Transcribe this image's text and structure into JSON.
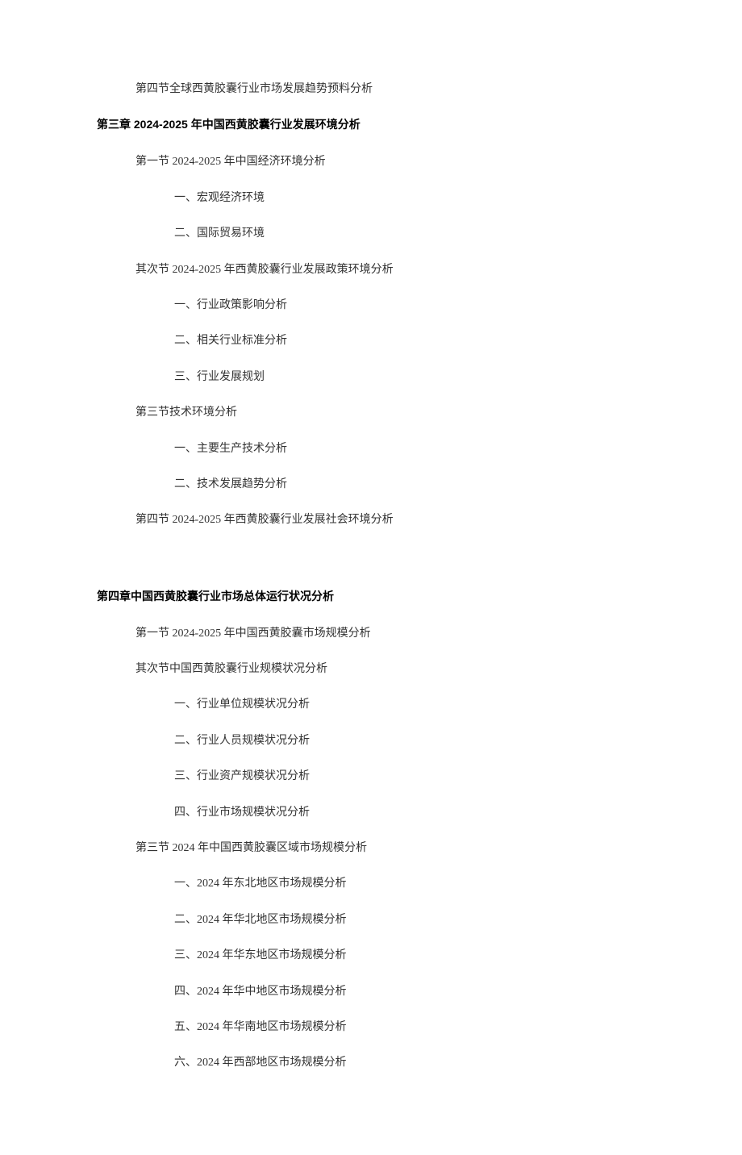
{
  "topLine": "第四节全球西黄胶囊行业市场发展趋势预料分析",
  "chapter3": {
    "title": "第三章 2024-2025 年中国西黄胶囊行业发展环境分析",
    "sections": [
      {
        "title": "第一节 2024-2025 年中国经济环境分析",
        "items": [
          "一、宏观经济环境",
          "二、国际贸易环境"
        ]
      },
      {
        "title": "其次节 2024-2025 年西黄胶囊行业发展政策环境分析",
        "items": [
          "一、行业政策影响分析",
          "二、相关行业标准分析",
          "三、行业发展规划"
        ]
      },
      {
        "title": "第三节技术环境分析",
        "items": [
          "一、主要生产技术分析",
          "二、技术发展趋势分析"
        ]
      },
      {
        "title": "第四节 2024-2025 年西黄胶囊行业发展社会环境分析",
        "items": []
      }
    ]
  },
  "chapter4": {
    "title": "第四章中国西黄胶囊行业市场总体运行状况分析",
    "sections": [
      {
        "title": "第一节 2024-2025 年中国西黄胶囊市场规模分析",
        "items": []
      },
      {
        "title": "其次节中国西黄胶囊行业规模状况分析",
        "items": [
          "一、行业单位规模状况分析",
          "二、行业人员规模状况分析",
          "三、行业资产规模状况分析",
          "四、行业市场规模状况分析"
        ]
      },
      {
        "title": "第三节 2024 年中国西黄胶囊区域市场规模分析",
        "items": [
          "一、2024 年东北地区市场规模分析",
          "二、2024 年华北地区市场规模分析",
          "三、2024 年华东地区市场规模分析",
          "四、2024 年华中地区市场规模分析",
          "五、2024 年华南地区市场规模分析",
          "六、2024 年西部地区市场规模分析"
        ]
      }
    ]
  }
}
